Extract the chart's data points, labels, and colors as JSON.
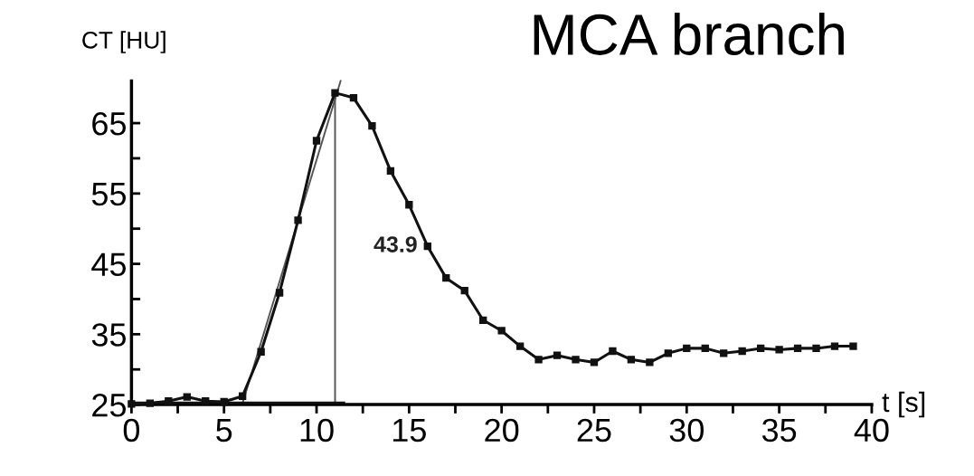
{
  "chart_data": {
    "type": "line",
    "title": "MCA branch",
    "ylabel": "CT [HU]",
    "xlabel": "t [s]",
    "xlim": [
      0,
      40
    ],
    "ylim": [
      25,
      71
    ],
    "xticks": [
      0,
      {
        "value": 2.5,
        "label": null
      },
      5,
      {
        "value": 7.5,
        "label": null
      },
      10,
      {
        "value": 12.5,
        "label": null
      },
      15,
      {
        "value": 17.5,
        "label": null
      },
      20,
      {
        "value": 22.5,
        "label": null
      },
      25,
      {
        "value": 27.5,
        "label": null
      },
      30,
      {
        "value": 32.5,
        "label": null
      },
      35,
      {
        "value": 37.5,
        "label": null
      },
      40
    ],
    "yticks": [
      25,
      {
        "value": 30,
        "label": null
      },
      35,
      {
        "value": 40,
        "label": null
      },
      45,
      {
        "value": 50,
        "label": null
      },
      55,
      {
        "value": 60,
        "label": null
      },
      65
    ],
    "grid": false,
    "legend": false,
    "marker": "square",
    "line_style": "solid",
    "series": [
      {
        "color": "#111111",
        "x": [
          0,
          1,
          2,
          3,
          4,
          5,
          6,
          7,
          8,
          9,
          10,
          11,
          12,
          13,
          14,
          15,
          16,
          17,
          18,
          19,
          20,
          21,
          22,
          23,
          24,
          25,
          26,
          27,
          28,
          29,
          30,
          31,
          32,
          33,
          34,
          35,
          36,
          37,
          38,
          39
        ],
        "values": [
          25.1,
          25.2,
          25.5,
          26.1,
          25.5,
          25.4,
          26.2,
          32.5,
          40.9,
          51.2,
          62.5,
          69.3,
          68.6,
          64.6,
          58.2,
          53.4,
          47.5,
          43.0,
          41.2,
          37.0,
          35.5,
          33.3,
          31.4,
          32.0,
          31.4,
          31.0,
          32.6,
          31.4,
          31.0,
          32.3,
          33.0,
          33.0,
          32.3,
          32.6,
          33.0,
          32.8,
          33.0,
          33.0,
          33.3,
          33.3
        ]
      },
      {
        "type": "line",
        "color": "#555555",
        "marker": "none",
        "x": [
          6.0,
          11.3
        ],
        "values": [
          25.2,
          71
        ]
      },
      {
        "type": "line",
        "color": "#555555",
        "marker": "none",
        "x": [
          11,
          11
        ],
        "values": [
          25,
          69.3
        ]
      },
      {
        "type": "line",
        "color": "#111111",
        "marker": "none",
        "x": [
          0,
          11.5
        ],
        "values": [
          25.3,
          25.3
        ]
      }
    ],
    "annotations": [
      {
        "text": "43.9",
        "x": 16,
        "y": 47.5
      }
    ]
  }
}
